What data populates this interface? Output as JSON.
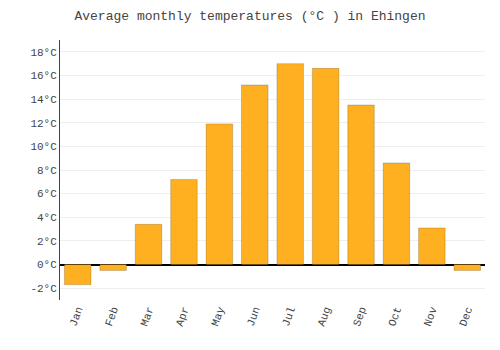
{
  "chart_data": {
    "type": "bar",
    "title": "Average monthly temperatures (°C ) in Ehingen",
    "categories": [
      "Jan",
      "Feb",
      "Mar",
      "Apr",
      "May",
      "Jun",
      "Jul",
      "Aug",
      "Sep",
      "Oct",
      "Nov",
      "Dec"
    ],
    "values": [
      -1.7,
      -0.5,
      3.4,
      7.2,
      11.9,
      15.2,
      17.0,
      16.6,
      13.5,
      8.6,
      3.1,
      -0.5
    ],
    "color": "#FFB020",
    "ylim": [
      -3.0,
      19.0
    ],
    "yticks": [
      {
        "value": -2,
        "label": "-2°C"
      },
      {
        "value": 0,
        "label": "0°C"
      },
      {
        "value": 2,
        "label": "2°C"
      },
      {
        "value": 4,
        "label": "4°C"
      },
      {
        "value": 6,
        "label": "6°C"
      },
      {
        "value": 8,
        "label": "8°C"
      },
      {
        "value": 10,
        "label": "10°C"
      },
      {
        "value": 12,
        "label": "12°C"
      },
      {
        "value": 14,
        "label": "14°C"
      },
      {
        "value": 16,
        "label": "16°C"
      },
      {
        "value": 18,
        "label": "18°C"
      }
    ],
    "grid": true
  }
}
